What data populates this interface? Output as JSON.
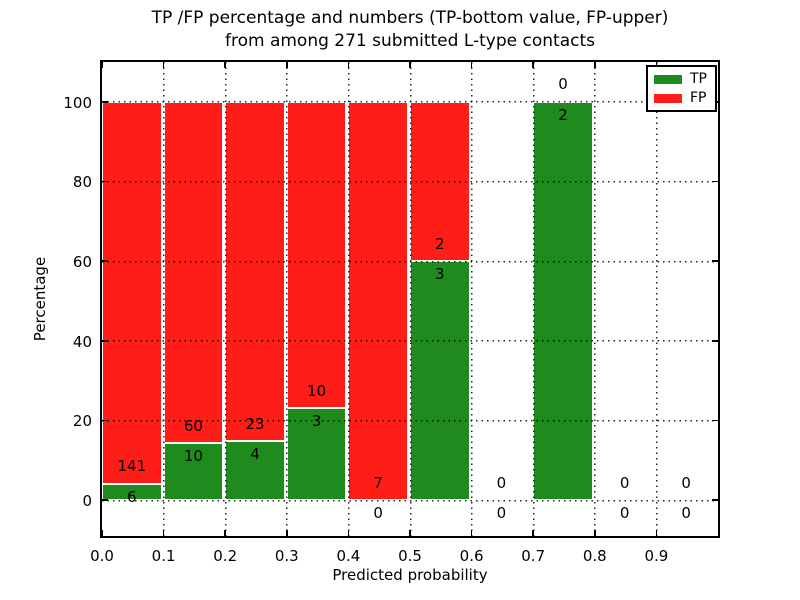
{
  "title": {
    "line1": "TP /FP percentage and numbers (TP-bottom value, FP-upper)",
    "line2": "from among 271 submitted L-type contacts"
  },
  "colors": {
    "tp_green": "#1f8b1f",
    "fp_red": "#ff1d18",
    "axis_black": "#000000",
    "background": "#ffffff"
  },
  "legend": {
    "items": [
      {
        "label": "TP",
        "color": "#1f8b1f"
      },
      {
        "label": "FP",
        "color": "#ff1d18"
      }
    ]
  },
  "chart_data": {
    "type": "bar",
    "stacked": true,
    "normalized_to_percent": true,
    "title": "TP /FP percentage and numbers (TP-bottom value, FP-upper) from among 271 submitted L-type contacts",
    "xlabel": "Predicted probability",
    "ylabel": "Percentage",
    "xlim": [
      0.0,
      1.0
    ],
    "ylim": [
      -9,
      110
    ],
    "grid": true,
    "legend_position": "upper right",
    "x_tick_labels": [
      "0.0",
      "0.1",
      "0.2",
      "0.3",
      "0.4",
      "0.5",
      "0.6",
      "0.7",
      "0.8",
      "0.9"
    ],
    "y_tick_labels": [
      "0",
      "20",
      "40",
      "60",
      "80",
      "100"
    ],
    "y_tick_values": [
      0,
      20,
      40,
      60,
      80,
      100
    ],
    "categories": [
      "0.0-0.1",
      "0.1-0.2",
      "0.2-0.3",
      "0.3-0.4",
      "0.4-0.5",
      "0.5-0.6",
      "0.6-0.7",
      "0.7-0.8",
      "0.8-0.9",
      "0.9-1.0"
    ],
    "bin_width": 0.1,
    "total_contacts": 271,
    "series": [
      {
        "name": "TP",
        "color": "#1f8b1f",
        "counts": [
          6,
          10,
          4,
          3,
          0,
          3,
          0,
          2,
          0,
          0
        ]
      },
      {
        "name": "FP",
        "color": "#ff1d18",
        "counts": [
          141,
          60,
          23,
          10,
          7,
          2,
          0,
          0,
          0,
          0
        ]
      }
    ],
    "tp_percent_by_bin": [
      4.08,
      14.29,
      14.81,
      23.08,
      0.0,
      60.0,
      null,
      100.0,
      null,
      null
    ]
  }
}
